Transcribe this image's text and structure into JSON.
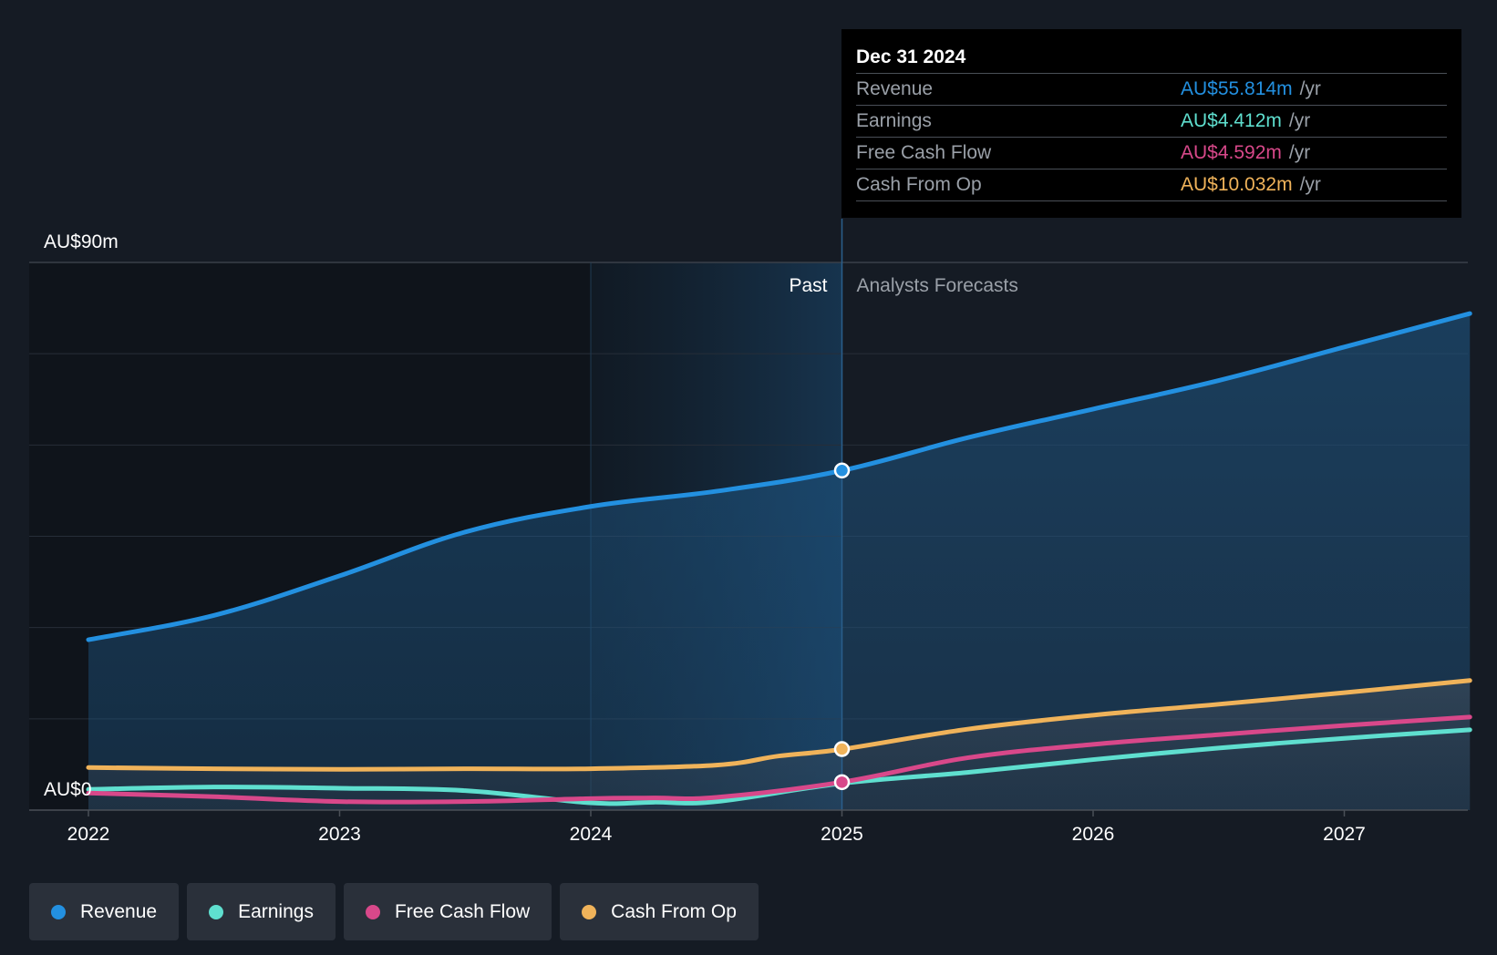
{
  "chart_data": {
    "type": "area",
    "y_axis": {
      "top_label": "AU$90m",
      "bottom_label": "AU$0",
      "ylim": [
        0,
        90
      ]
    },
    "x_axis": {
      "ticks": [
        "2022",
        "2023",
        "2024",
        "2025",
        "2026",
        "2027"
      ],
      "xlim": [
        2021.77,
        2027.5
      ]
    },
    "past_label": "Past",
    "forecast_label": "Analysts Forecasts",
    "divider_x": 2025.0,
    "highlight_start_x": 2024.0,
    "series": [
      {
        "name": "Revenue",
        "color": "#2390e0",
        "x": [
          2022.0,
          2022.5,
          2023.0,
          2023.5,
          2024.0,
          2024.5,
          2025.0,
          2025.5,
          2026.0,
          2026.5,
          2027.0,
          2027.5
        ],
        "values": [
          28.0,
          32.0,
          38.5,
          45.7,
          49.9,
          52.4,
          55.8,
          61.2,
          65.9,
          70.6,
          76.1,
          81.6
        ]
      },
      {
        "name": "Earnings",
        "color": "#5fdfcf",
        "x": [
          2022.0,
          2022.5,
          2023.0,
          2023.5,
          2024.0,
          2024.25,
          2024.5,
          2025.0,
          2025.5,
          2026.0,
          2026.5,
          2027.0,
          2027.5
        ],
        "values": [
          3.4,
          3.8,
          3.6,
          3.2,
          1.2,
          1.3,
          1.4,
          4.4,
          6.2,
          8.3,
          10.2,
          11.8,
          13.2
        ]
      },
      {
        "name": "Free Cash Flow",
        "color": "#d8488a",
        "x": [
          2022.0,
          2022.5,
          2023.0,
          2023.5,
          2024.0,
          2024.25,
          2024.5,
          2025.0,
          2025.5,
          2026.0,
          2026.5,
          2027.0,
          2027.5
        ],
        "values": [
          2.8,
          2.2,
          1.4,
          1.4,
          1.9,
          2.0,
          2.1,
          4.6,
          8.6,
          10.8,
          12.4,
          13.9,
          15.3
        ]
      },
      {
        "name": "Cash From Op",
        "color": "#f0b35a",
        "x": [
          2022.0,
          2022.5,
          2023.0,
          2023.5,
          2024.0,
          2024.5,
          2024.75,
          2025.0,
          2025.5,
          2026.0,
          2026.5,
          2027.0,
          2027.5
        ],
        "values": [
          7.0,
          6.8,
          6.7,
          6.8,
          6.8,
          7.4,
          8.9,
          10.0,
          13.3,
          15.6,
          17.4,
          19.3,
          21.3
        ]
      }
    ],
    "highlight_points": [
      {
        "series": "Revenue",
        "x": 2025.0,
        "value": 55.814
      },
      {
        "series": "Cash From Op",
        "x": 2025.0,
        "value": 10.032
      },
      {
        "series": "Free Cash Flow",
        "x": 2025.0,
        "value": 4.592
      }
    ]
  },
  "tooltip": {
    "date": "Dec 31 2024",
    "rows": [
      {
        "label": "Revenue",
        "value": "AU$55.814m",
        "unit": "/yr",
        "color": "#2390e0"
      },
      {
        "label": "Earnings",
        "value": "AU$4.412m",
        "unit": "/yr",
        "color": "#5fdfcf"
      },
      {
        "label": "Free Cash Flow",
        "value": "AU$4.592m",
        "unit": "/yr",
        "color": "#d8488a"
      },
      {
        "label": "Cash From Op",
        "value": "AU$10.032m",
        "unit": "/yr",
        "color": "#f0b35a"
      }
    ]
  },
  "legend": [
    {
      "label": "Revenue",
      "color": "#2390e0"
    },
    {
      "label": "Earnings",
      "color": "#5fdfcf"
    },
    {
      "label": "Free Cash Flow",
      "color": "#d8488a"
    },
    {
      "label": "Cash From Op",
      "color": "#f0b35a"
    }
  ]
}
